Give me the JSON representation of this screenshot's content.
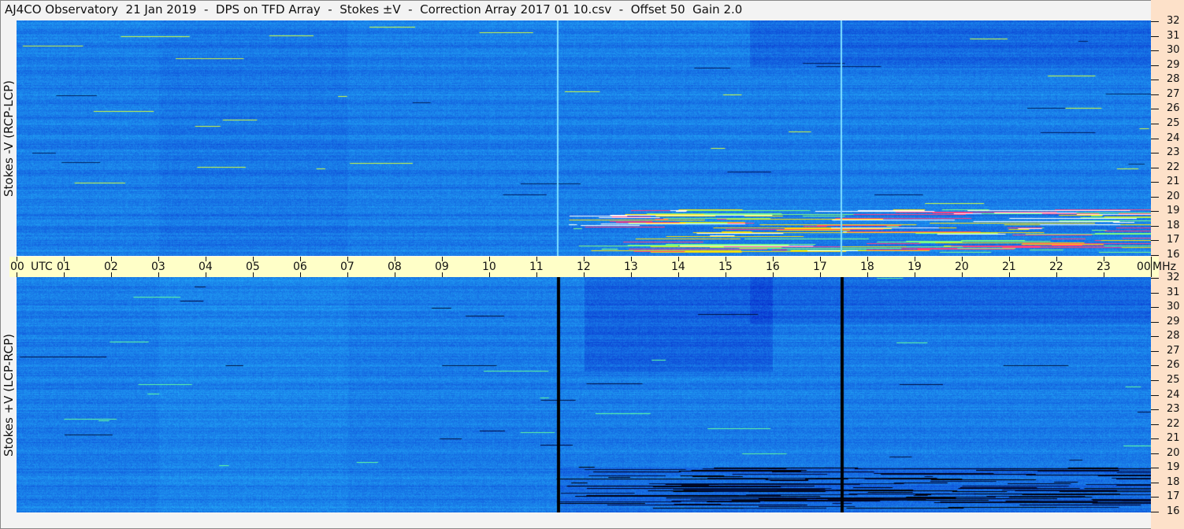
{
  "title": "AJ4CO Observatory  21 Jan 2019  -  DPS on TFD Array  -  Stokes ±V  -  Correction Array 2017 01 10.csv  -  Offset 50  Gain 2.0",
  "chart_data": [
    {
      "type": "heatmap",
      "ylabel": "Stokes -V (RCP-LCP)",
      "x_ticks": [
        "00",
        "01",
        "02",
        "03",
        "04",
        "05",
        "06",
        "07",
        "08",
        "09",
        "10",
        "11",
        "12",
        "13",
        "14",
        "15",
        "16",
        "17",
        "18",
        "19",
        "20",
        "21",
        "22",
        "23",
        "00"
      ],
      "xlim_hours": [
        0,
        24
      ],
      "y_ticks": [
        32,
        31,
        30,
        29,
        28,
        27,
        26,
        25,
        24,
        23,
        22,
        21,
        20,
        19,
        18,
        17,
        16
      ],
      "ylim_mhz": [
        16,
        32
      ],
      "vertical_lines_hours": [
        11.45,
        17.45
      ],
      "vertical_line_color": "#7fe0ff"
    },
    {
      "type": "heatmap",
      "ylabel": "Stokes +V (LCP-RCP)",
      "xlim_hours": [
        0,
        24
      ],
      "y_ticks": [
        32,
        31,
        30,
        29,
        28,
        27,
        26,
        25,
        24,
        23,
        22,
        21,
        20,
        19,
        18,
        17,
        16
      ],
      "ylim_mhz": [
        16,
        32
      ],
      "vertical_lines_hours": [
        11.45,
        17.45
      ],
      "vertical_line_color": "#000000"
    }
  ],
  "axis": {
    "time_unit": "UTC",
    "freq_unit": "MHz"
  },
  "colors": {
    "base": "#1a7fe8",
    "axis_bar": "#ffffc8",
    "right_axis": "#fde1c9"
  }
}
